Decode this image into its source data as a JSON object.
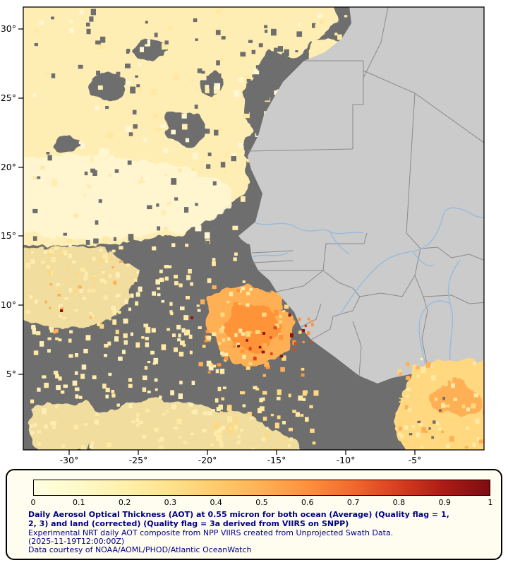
{
  "map": {
    "y_tick_labels": [
      "30°",
      "25°",
      "20°",
      "15°",
      "10°",
      "5°"
    ],
    "x_tick_labels": [
      "-30°",
      "-25°",
      "-20°",
      "-15°",
      "-10°",
      "-5°"
    ],
    "palette": {
      "no_data_gray": "#6e6e6e",
      "land_gray": "#cbcbcb",
      "border_gray": "#8a8a8a",
      "river_blue": "#94badf",
      "frame_black": "#000000",
      "aot_pale": "#ffeeb4",
      "aot_cream": "#fff6d2",
      "aot_yellow": "#ffe9a4",
      "aot_gold": "#ffd880",
      "aot_orange": "#ffb055",
      "aot_deep_orange": "#ff9338",
      "aot_red": "#d84a1c",
      "aot_dark_red": "#8e1410"
    }
  },
  "legend": {
    "tick_labels": [
      "0",
      "0.1",
      "0.2",
      "0.3",
      "0.4",
      "0.5",
      "0.6",
      "0.7",
      "0.8",
      "0.9",
      "1"
    ],
    "gradient_colors": [
      "#ffffe0",
      "#fff9c9",
      "#fff0ab",
      "#ffe28b",
      "#ffcb6b",
      "#ffb054",
      "#ff903d",
      "#f4682c",
      "#d93d20",
      "#ae1a15",
      "#7c0d11"
    ],
    "caption_bold_line1": "Daily Aerosol Optical Thickness (AOT) at 0.55 micron for both ocean (Average) (Quality flag = 1,",
    "caption_bold_line2": "2, 3) and land (corrected) (Quality flag = 3a derived from VIIRS on SNPP)",
    "description_line": "Experimental NRT daily AOT composite from NPP VIIRS created from Unprojected Swath Data.",
    "timestamp_line": "(2025-11-19T12:00:00Z)",
    "credit_line": "Data courtesy of NOAA/AOML/PHOD/Atlantic OceanWatch",
    "text_color": "#00008b",
    "box_background": "#fffdf0"
  }
}
